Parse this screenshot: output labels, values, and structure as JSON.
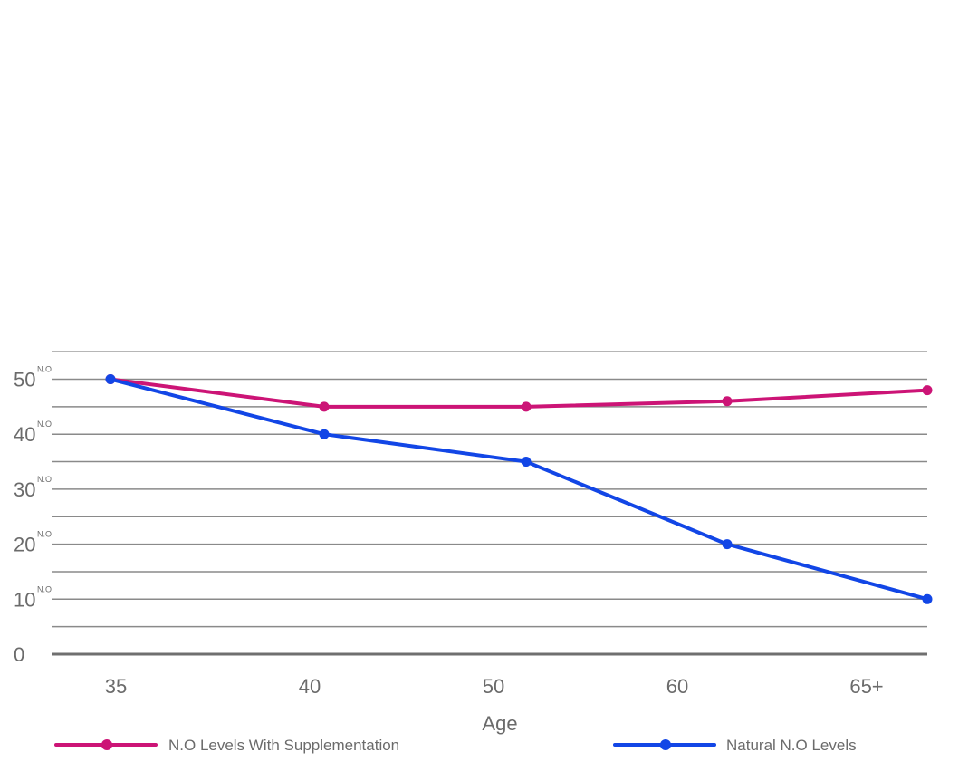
{
  "chart_data": {
    "type": "line",
    "title": "",
    "xlabel": "Age",
    "ylabel": "",
    "categories": [
      "35",
      "40",
      "50",
      "60",
      "65+"
    ],
    "ylim": [
      0,
      55
    ],
    "yticks": [
      0,
      10,
      20,
      30,
      40,
      50
    ],
    "ytick_suffix": "N.O",
    "grid": true,
    "legend_position": "bottom",
    "series": [
      {
        "name": "N.O Levels With Supplementation",
        "color": "#cc1476",
        "values": [
          50,
          45,
          45,
          46,
          48
        ]
      },
      {
        "name": "Natural N.O Levels",
        "color": "#1246e6",
        "values": [
          50,
          40,
          35,
          20,
          10
        ]
      }
    ]
  }
}
